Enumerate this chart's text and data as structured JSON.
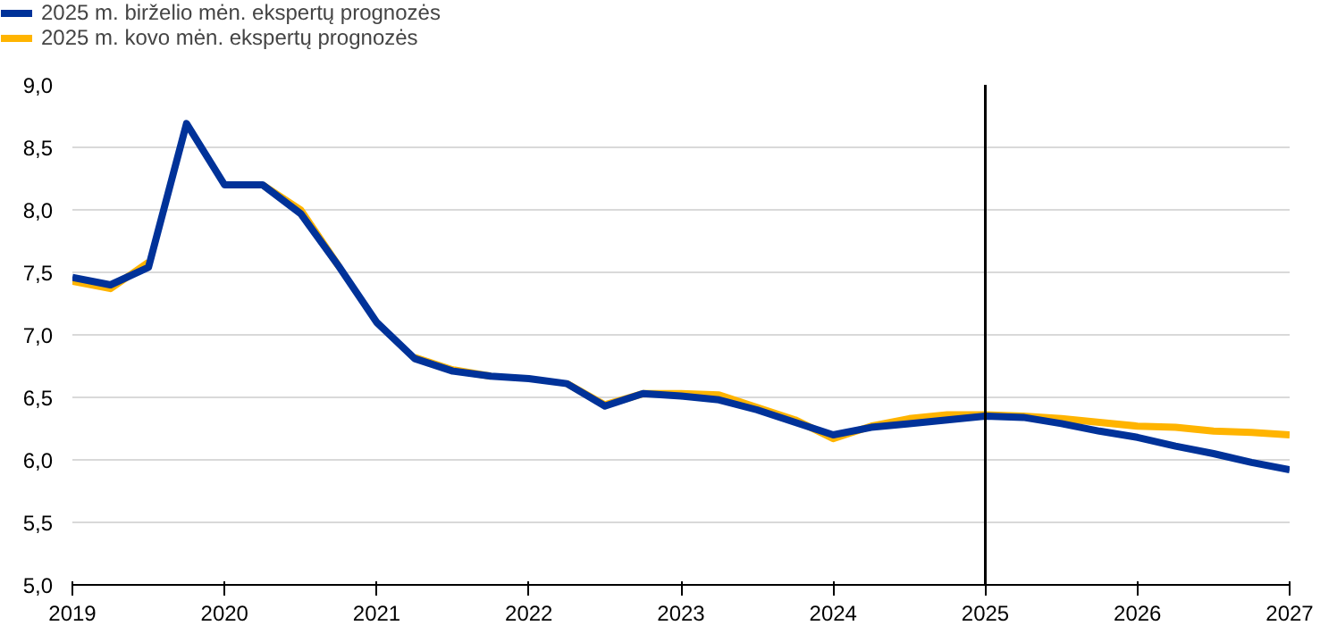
{
  "chart_data": {
    "type": "line",
    "x": [
      2019,
      2019.25,
      2019.5,
      2019.75,
      2020,
      2020.25,
      2020.5,
      2020.75,
      2021,
      2021.25,
      2021.5,
      2021.75,
      2022,
      2022.25,
      2022.5,
      2022.75,
      2023,
      2023.25,
      2023.5,
      2023.75,
      2024,
      2024.25,
      2024.5,
      2024.75,
      2025,
      2025.25,
      2025.5,
      2025.75,
      2026,
      2026.25,
      2026.5,
      2026.75,
      2027
    ],
    "series": [
      {
        "name": "2025 m. birželio mėn. ekspertų prognozės",
        "color": "#003299",
        "values": [
          7.46,
          7.4,
          7.54,
          8.69,
          8.2,
          8.2,
          7.97,
          7.55,
          7.1,
          6.81,
          6.71,
          6.67,
          6.65,
          6.61,
          6.43,
          6.53,
          6.51,
          6.48,
          6.4,
          6.3,
          6.2,
          6.26,
          6.29,
          6.32,
          6.35,
          6.34,
          6.29,
          6.23,
          6.18,
          6.11,
          6.05,
          5.98,
          5.92
        ]
      },
      {
        "name": "2025 m. kovo mėn. ekspertų prognozės",
        "color": "#ffb400",
        "values": [
          7.43,
          7.37,
          7.58,
          null,
          null,
          8.2,
          8.0,
          7.55,
          null,
          6.82,
          6.72,
          6.67,
          null,
          6.61,
          6.44,
          6.53,
          6.53,
          6.52,
          6.42,
          6.32,
          6.17,
          6.27,
          6.33,
          6.36,
          6.36,
          6.35,
          6.33,
          6.3,
          6.27,
          6.26,
          6.23,
          6.22,
          6.2
        ]
      }
    ],
    "xlim": [
      2019,
      2027
    ],
    "xticks": [
      2019,
      2020,
      2021,
      2022,
      2023,
      2024,
      2025,
      2026,
      2027
    ],
    "ylim": [
      5,
      9
    ],
    "yticks": [
      {
        "value": 5,
        "label": "5,0"
      },
      {
        "value": 5.5,
        "label": "5,5"
      },
      {
        "value": 6,
        "label": "6,0"
      },
      {
        "value": 6.5,
        "label": "6,5"
      },
      {
        "value": 7,
        "label": "7,0"
      },
      {
        "value": 7.5,
        "label": "7,5"
      },
      {
        "value": 8,
        "label": "8,0"
      },
      {
        "value": 8.5,
        "label": "8,5"
      },
      {
        "value": 9,
        "label": "9,0"
      }
    ],
    "grid": "y",
    "legend": "top left",
    "line_style": "solid",
    "ref_lines": [
      {
        "axis": "x",
        "value": 2025,
        "color": "#000000",
        "line_style": "solid"
      }
    ]
  }
}
